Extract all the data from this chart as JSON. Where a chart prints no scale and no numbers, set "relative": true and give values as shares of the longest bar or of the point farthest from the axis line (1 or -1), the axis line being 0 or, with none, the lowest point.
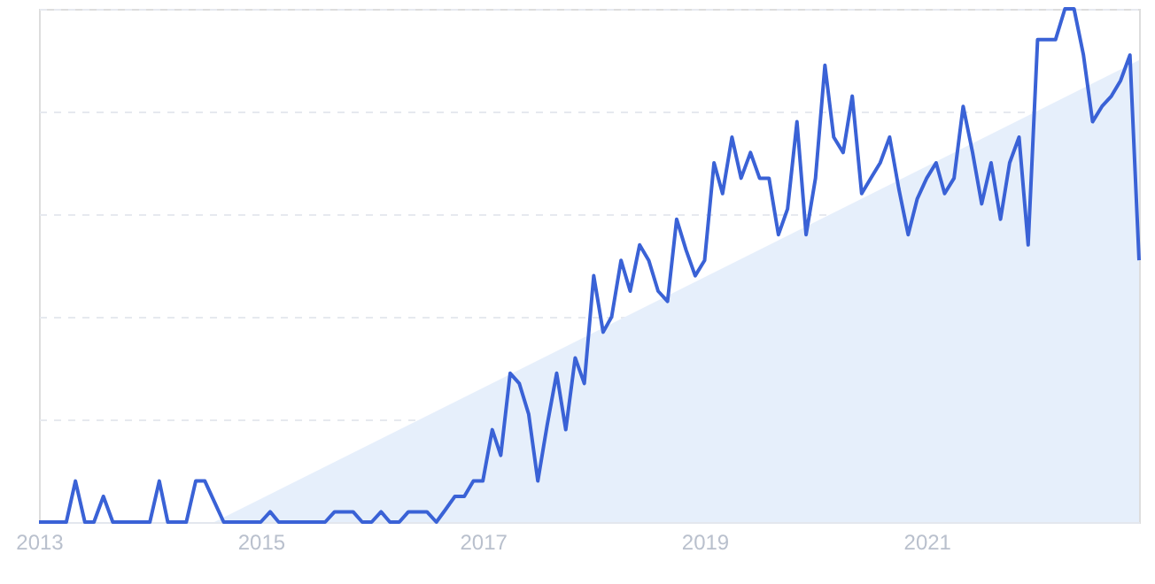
{
  "chart_data": {
    "type": "line",
    "relative": true,
    "grid": "y",
    "xlim": [
      "2013-01",
      "2022-12"
    ],
    "xticks": [
      "2013",
      "2015",
      "2017",
      "2019",
      "2021"
    ],
    "x": [
      "2013-01",
      "2013-02",
      "2013-03",
      "2013-04",
      "2013-05",
      "2013-06",
      "2013-07",
      "2013-08",
      "2013-09",
      "2013-10",
      "2013-11",
      "2013-12",
      "2014-01",
      "2014-02",
      "2014-03",
      "2014-04",
      "2014-05",
      "2014-06",
      "2014-07",
      "2014-08",
      "2014-09",
      "2014-10",
      "2014-11",
      "2014-12",
      "2015-01",
      "2015-02",
      "2015-03",
      "2015-04",
      "2015-05",
      "2015-06",
      "2015-07",
      "2015-08",
      "2015-09",
      "2015-10",
      "2015-11",
      "2015-12",
      "2016-01",
      "2016-02",
      "2016-03",
      "2016-04",
      "2016-05",
      "2016-06",
      "2016-07",
      "2016-08",
      "2016-09",
      "2016-10",
      "2016-11",
      "2016-12",
      "2017-01",
      "2017-02",
      "2017-03",
      "2017-04",
      "2017-05",
      "2017-06",
      "2017-07",
      "2017-08",
      "2017-09",
      "2017-10",
      "2017-11",
      "2017-12",
      "2018-01",
      "2018-02",
      "2018-03",
      "2018-04",
      "2018-05",
      "2018-06",
      "2018-07",
      "2018-08",
      "2018-09",
      "2018-10",
      "2018-11",
      "2018-12",
      "2019-01",
      "2019-02",
      "2019-03",
      "2019-04",
      "2019-05",
      "2019-06",
      "2019-07",
      "2019-08",
      "2019-09",
      "2019-10",
      "2019-11",
      "2019-12",
      "2020-01",
      "2020-02",
      "2020-03",
      "2020-04",
      "2020-05",
      "2020-06",
      "2020-07",
      "2020-08",
      "2020-09",
      "2020-10",
      "2020-11",
      "2020-12",
      "2021-01",
      "2021-02",
      "2021-03",
      "2021-04",
      "2021-05",
      "2021-06",
      "2021-07",
      "2021-08",
      "2021-09",
      "2021-10",
      "2021-11",
      "2021-12",
      "2022-01",
      "2022-02",
      "2022-03",
      "2022-04",
      "2022-05",
      "2022-06",
      "2022-07",
      "2022-08",
      "2022-09",
      "2022-10",
      "2022-11",
      "2022-12"
    ],
    "series": [
      {
        "type": "area",
        "color": "#e6effb",
        "x": [
          "2014-08",
          "2022-12"
        ],
        "values": [
          0,
          0.9
        ]
      },
      {
        "color": "#3a62d6",
        "values": [
          0,
          0,
          0,
          0,
          0.08,
          0,
          0,
          0.05,
          0,
          0,
          0,
          0,
          0,
          0.08,
          0,
          0,
          0,
          0.08,
          0.08,
          0.04,
          0,
          0,
          0,
          0,
          0,
          0.02,
          0,
          0,
          0,
          0,
          0,
          0,
          0.02,
          0.02,
          0.02,
          0,
          0,
          0.02,
          0,
          0,
          0.02,
          0.02,
          0.02,
          0,
          0.025,
          0.05,
          0.05,
          0.08,
          0.08,
          0.18,
          0.13,
          0.29,
          0.27,
          0.21,
          0.08,
          0.19,
          0.29,
          0.18,
          0.32,
          0.27,
          0.48,
          0.37,
          0.4,
          0.51,
          0.45,
          0.54,
          0.51,
          0.45,
          0.43,
          0.59,
          0.53,
          0.48,
          0.51,
          0.7,
          0.64,
          0.75,
          0.67,
          0.72,
          0.67,
          0.67,
          0.56,
          0.61,
          0.78,
          0.56,
          0.67,
          0.89,
          0.75,
          0.72,
          0.83,
          0.64,
          0.67,
          0.7,
          0.75,
          0.65,
          0.56,
          0.63,
          0.67,
          0.7,
          0.64,
          0.67,
          0.81,
          0.72,
          0.62,
          0.7,
          0.59,
          0.7,
          0.75,
          0.54,
          0.94,
          0.94,
          0.94,
          1.0,
          1.0,
          0.91,
          0.78,
          0.81,
          0.83,
          0.86,
          0.91,
          0.51
        ]
      }
    ]
  }
}
